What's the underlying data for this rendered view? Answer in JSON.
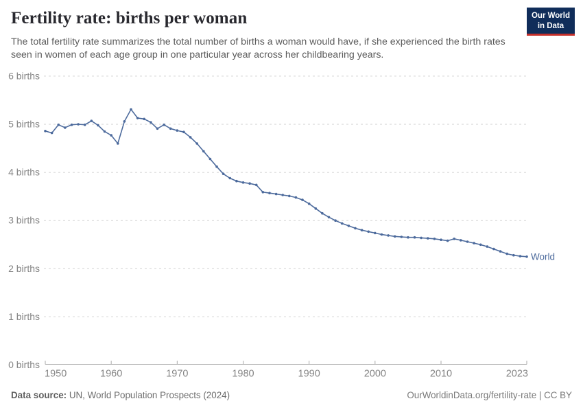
{
  "header": {
    "title": "Fertility rate: births per woman",
    "subtitle": "The total fertility rate summarizes the total number of births a woman would have, if she experienced the birth rates seen in women of each age group in one particular year across her childbearing years.",
    "logo": {
      "line1": "Our World",
      "line2": "in Data"
    }
  },
  "footer": {
    "source_label": "Data source:",
    "source_text": " UN, World Population Prospects (2024)",
    "link_text": "OurWorldinData.org/fertility-rate | CC BY"
  },
  "colors": {
    "line": "#4C6A9C",
    "grid": "#d2d2d2",
    "axis": "#a8a8a8",
    "tick_label": "#858585",
    "title": "#29292f",
    "subtitle": "#5b5b5b",
    "logo_bg": "#102D5A",
    "logo_red": "#C5302B"
  },
  "chart_data": {
    "type": "line",
    "title": "Fertility rate: births per woman",
    "ylabel": "",
    "xlabel": "",
    "ylim": [
      0,
      6
    ],
    "yticks": [
      0,
      1,
      2,
      3,
      4,
      5,
      6
    ],
    "ytick_label_format": "{value} births",
    "xticks": [
      1950,
      1960,
      1970,
      1980,
      1990,
      2000,
      2010,
      2023
    ],
    "grid": "horizontal-dashed",
    "legend": "end-of-line-label",
    "x": [
      1950,
      1951,
      1952,
      1953,
      1954,
      1955,
      1956,
      1957,
      1958,
      1959,
      1960,
      1961,
      1962,
      1963,
      1964,
      1965,
      1966,
      1967,
      1968,
      1969,
      1970,
      1971,
      1972,
      1973,
      1974,
      1975,
      1976,
      1977,
      1978,
      1979,
      1980,
      1981,
      1982,
      1983,
      1984,
      1985,
      1986,
      1987,
      1988,
      1989,
      1990,
      1991,
      1992,
      1993,
      1994,
      1995,
      1996,
      1997,
      1998,
      1999,
      2000,
      2001,
      2002,
      2003,
      2004,
      2005,
      2006,
      2007,
      2008,
      2009,
      2010,
      2011,
      2012,
      2013,
      2014,
      2015,
      2016,
      2017,
      2018,
      2019,
      2020,
      2021,
      2022,
      2023
    ],
    "series": [
      {
        "name": "World",
        "color": "#4C6A9C",
        "values": [
          4.86,
          4.82,
          4.99,
          4.93,
          4.99,
          5.0,
          4.99,
          5.07,
          4.98,
          4.85,
          4.77,
          4.6,
          5.06,
          5.31,
          5.13,
          5.11,
          5.04,
          4.91,
          4.99,
          4.91,
          4.87,
          4.84,
          4.73,
          4.6,
          4.44,
          4.28,
          4.12,
          3.97,
          3.88,
          3.82,
          3.79,
          3.77,
          3.74,
          3.59,
          3.57,
          3.55,
          3.53,
          3.51,
          3.48,
          3.43,
          3.35,
          3.25,
          3.15,
          3.07,
          3.0,
          2.94,
          2.89,
          2.84,
          2.8,
          2.77,
          2.74,
          2.71,
          2.69,
          2.67,
          2.66,
          2.65,
          2.65,
          2.64,
          2.63,
          2.62,
          2.6,
          2.58,
          2.62,
          2.59,
          2.56,
          2.53,
          2.5,
          2.46,
          2.41,
          2.36,
          2.31,
          2.28,
          2.26,
          2.25
        ]
      }
    ]
  }
}
